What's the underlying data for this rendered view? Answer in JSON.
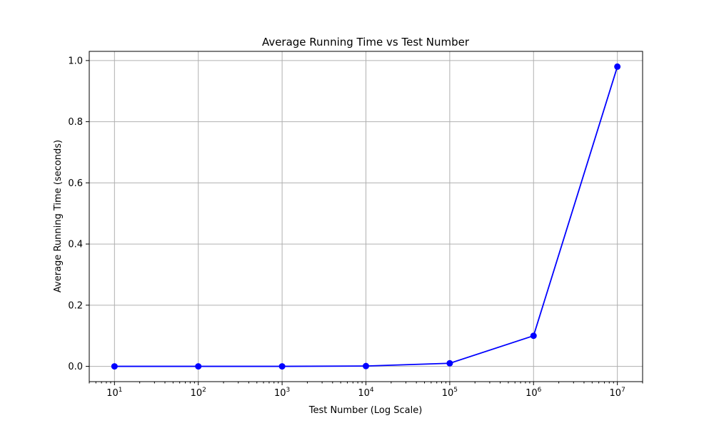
{
  "chart_data": {
    "type": "line",
    "title": "Average Running Time vs Test Number",
    "xlabel": "Test Number (Log Scale)",
    "ylabel": "Average Running Time (seconds)",
    "xscale": "log",
    "grid": true,
    "xlim": [
      5,
      20000000
    ],
    "ylim": [
      -0.05,
      1.03
    ],
    "x": [
      10,
      100,
      1000,
      10000,
      100000,
      1000000,
      10000000
    ],
    "x_tick_labels": [
      {
        "base": "10",
        "exp": "1"
      },
      {
        "base": "10",
        "exp": "2"
      },
      {
        "base": "10",
        "exp": "3"
      },
      {
        "base": "10",
        "exp": "4"
      },
      {
        "base": "10",
        "exp": "5"
      },
      {
        "base": "10",
        "exp": "6"
      },
      {
        "base": "10",
        "exp": "7"
      }
    ],
    "y_ticks": [
      0.0,
      0.2,
      0.4,
      0.6,
      0.8,
      1.0
    ],
    "y_tick_labels": [
      "0.0",
      "0.2",
      "0.4",
      "0.6",
      "0.8",
      "1.0"
    ],
    "series": [
      {
        "values": [
          0.0,
          0.0,
          0.0,
          0.001,
          0.01,
          0.1,
          0.98
        ],
        "color": "#0000ff",
        "marker": "circle"
      }
    ]
  }
}
